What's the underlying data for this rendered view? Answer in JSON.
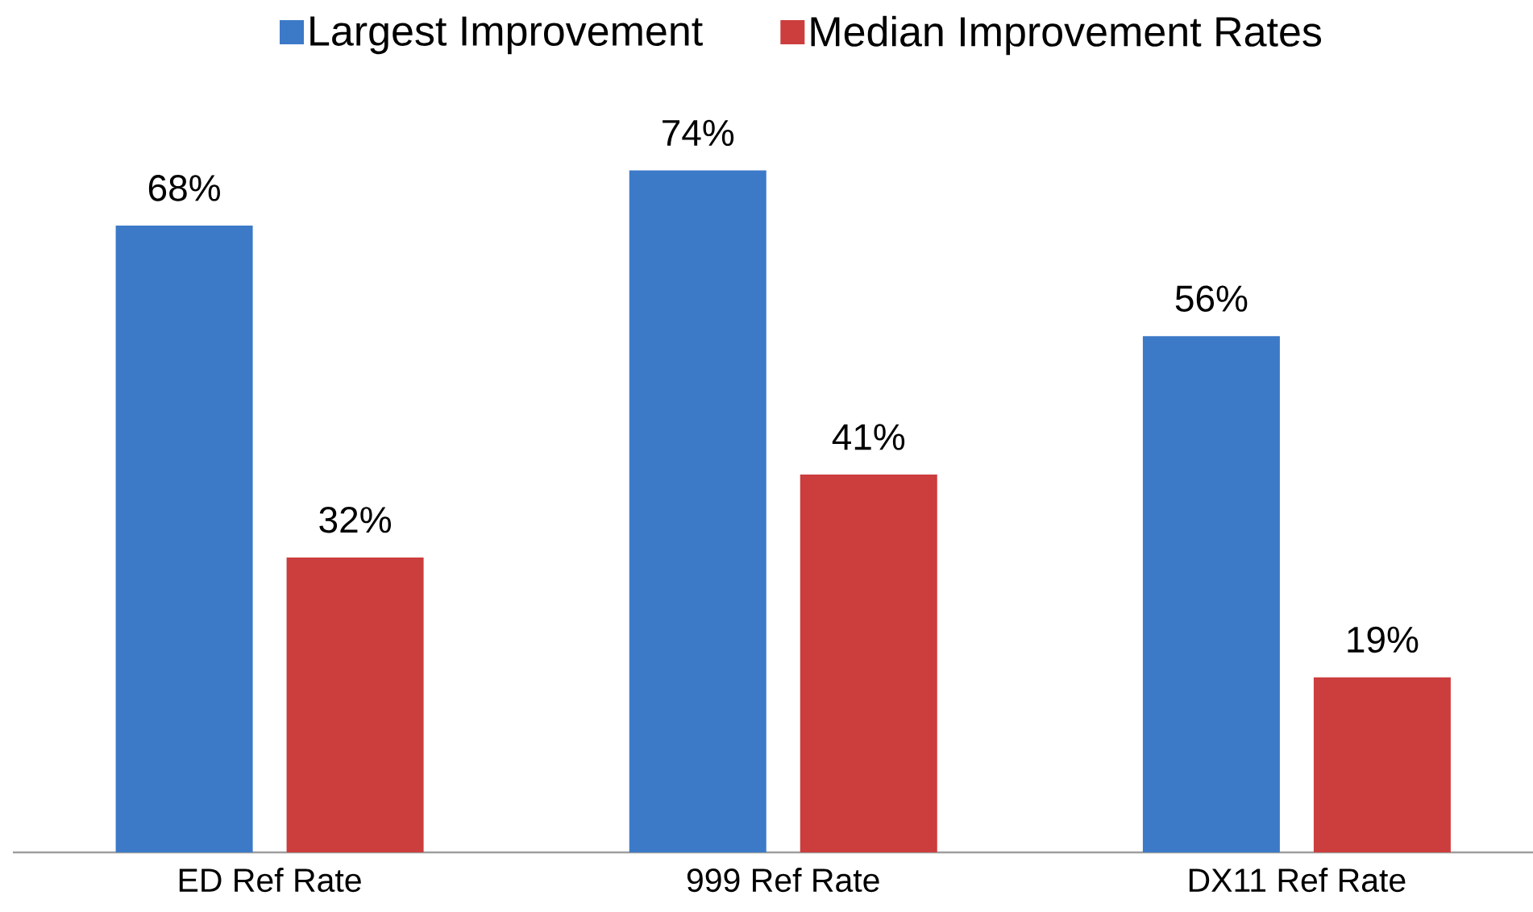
{
  "chart_data": {
    "type": "bar",
    "categories": [
      "ED Ref Rate",
      "999 Ref Rate",
      "DX11 Ref Rate"
    ],
    "series": [
      {
        "name": "Largest Improvement",
        "color": "#3c7ac8",
        "values": [
          68,
          74,
          56
        ],
        "value_labels": [
          "68%",
          "74%",
          "56%"
        ]
      },
      {
        "name": "Median Improvement Rates",
        "color": "#cc3d3d",
        "values": [
          32,
          41,
          19
        ],
        "value_labels": [
          "32%",
          "41%",
          "19%"
        ]
      }
    ],
    "tick_labels": "x",
    "legend": "top"
  }
}
